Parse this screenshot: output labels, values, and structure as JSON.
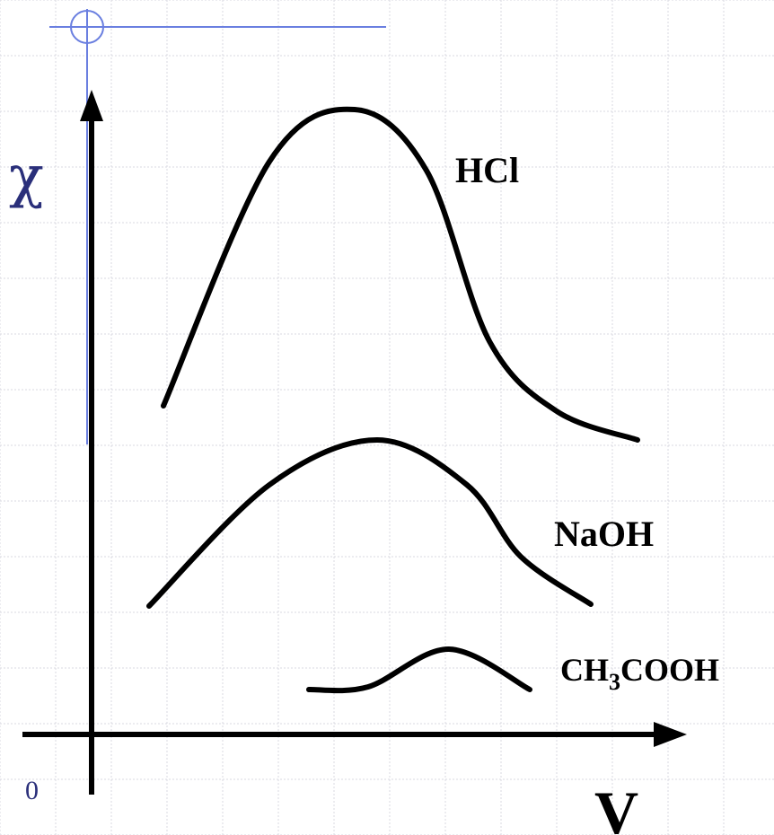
{
  "chart_data": {
    "type": "line",
    "xlabel": "V",
    "ylabel": "χ",
    "origin_label": "0",
    "grid": true,
    "series": [
      {
        "name": "HCl",
        "label_main": "HCl",
        "label_sub": "",
        "points": [
          [
            182,
            452
          ],
          [
            300,
            180
          ],
          [
            395,
            122
          ],
          [
            475,
            190
          ],
          [
            545,
            380
          ],
          [
            620,
            458
          ],
          [
            710,
            490
          ]
        ]
      },
      {
        "name": "NaOH",
        "label_main": "NaOH",
        "label_sub": "",
        "points": [
          [
            166,
            675
          ],
          [
            300,
            540
          ],
          [
            420,
            490
          ],
          [
            520,
            540
          ],
          [
            580,
            620
          ],
          [
            658,
            673
          ]
        ]
      },
      {
        "name": "CH3COOH",
        "label_main": "CH",
        "label_sub": "3",
        "label_tail": "COOH",
        "points": [
          [
            344,
            768
          ],
          [
            410,
            765
          ],
          [
            500,
            723
          ],
          [
            590,
            768
          ]
        ]
      }
    ]
  }
}
